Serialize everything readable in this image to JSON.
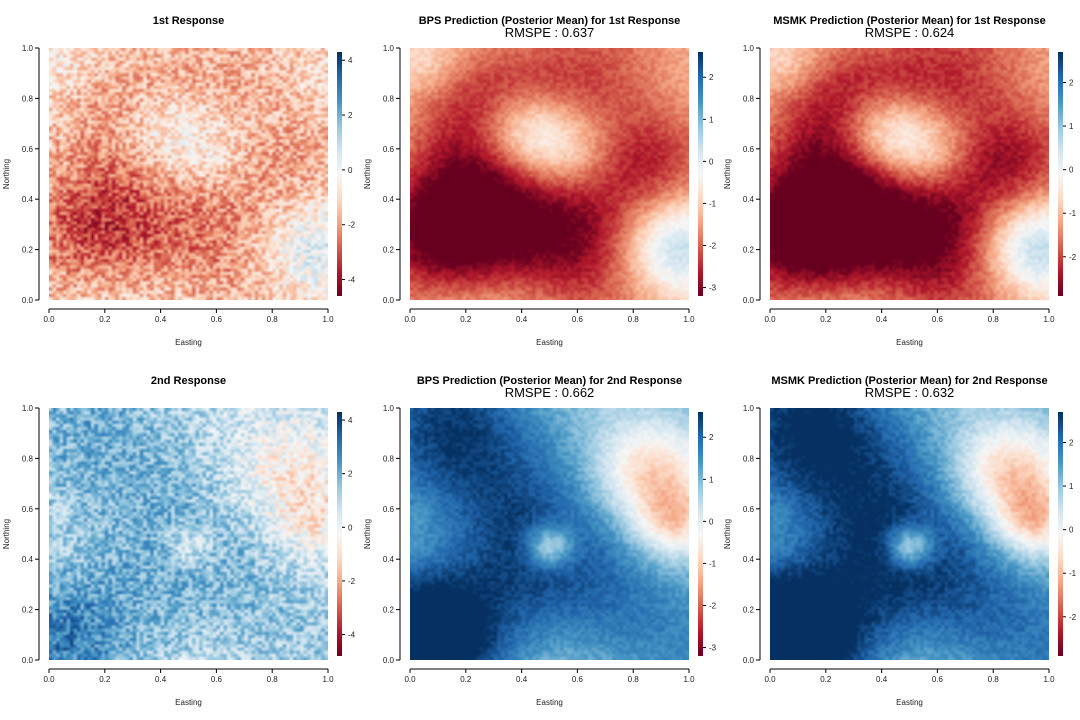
{
  "chart_data": [
    {
      "type": "heatmap",
      "title": "1st Response",
      "subtitle": "",
      "xlabel": "Easting",
      "ylabel": "Northing",
      "xlim": [
        0,
        1
      ],
      "ylim": [
        0,
        1
      ],
      "xticks": [
        "0.0",
        "0.2",
        "0.4",
        "0.6",
        "0.8",
        "1.0"
      ],
      "yticks": [
        "0.0",
        "0.2",
        "0.4",
        "0.6",
        "0.8",
        "1.0"
      ],
      "colorbar": {
        "range": [
          -4.6,
          4.3
        ],
        "ticks": [
          -4,
          -2,
          0,
          2,
          4
        ],
        "tick_labels": [
          "-4",
          "-2",
          "0",
          "2",
          "4"
        ]
      },
      "colormap": {
        "low": "#67001f",
        "mid": "#f7f7f7",
        "high": "#053061"
      },
      "field": {
        "bias": -0.9,
        "smooth": false
      }
    },
    {
      "type": "heatmap",
      "title": "BPS Prediction (Posterior Mean) for 1st Response",
      "subtitle": "RMSPE : 0.637",
      "xlabel": "Easting",
      "ylabel": "Northing",
      "xlim": [
        0,
        1
      ],
      "ylim": [
        0,
        1
      ],
      "xticks": [
        "0.0",
        "0.2",
        "0.4",
        "0.6",
        "0.8",
        "1.0"
      ],
      "yticks": [
        "0.0",
        "0.2",
        "0.4",
        "0.6",
        "0.8",
        "1.0"
      ],
      "colorbar": {
        "range": [
          -3.2,
          2.6
        ],
        "ticks": [
          -3,
          -2,
          -1,
          0,
          1,
          2
        ],
        "tick_labels": [
          "-3",
          "-2",
          "-1",
          "0",
          "1",
          "2"
        ]
      },
      "colormap": {
        "low": "#67001f",
        "mid": "#f7f7f7",
        "high": "#053061"
      },
      "field": {
        "bias": -0.9,
        "smooth": true
      }
    },
    {
      "type": "heatmap",
      "title": "MSMK Prediction (Posterior Mean) for 1st Response",
      "subtitle": "RMSPE : 0.624",
      "xlabel": "Easting",
      "ylabel": "Northing",
      "xlim": [
        0,
        1
      ],
      "ylim": [
        0,
        1
      ],
      "xticks": [
        "0.0",
        "0.2",
        "0.4",
        "0.6",
        "0.8",
        "1.0"
      ],
      "yticks": [
        "0.0",
        "0.2",
        "0.4",
        "0.6",
        "0.8",
        "1.0"
      ],
      "colorbar": {
        "range": [
          -2.9,
          2.7
        ],
        "ticks": [
          -2,
          -1,
          0,
          1,
          2
        ],
        "tick_labels": [
          "-2",
          "-1",
          "0",
          "1",
          "2"
        ]
      },
      "colormap": {
        "low": "#67001f",
        "mid": "#f7f7f7",
        "high": "#053061"
      },
      "field": {
        "bias": -0.9,
        "smooth": true
      }
    },
    {
      "type": "heatmap",
      "title": "2nd Response",
      "subtitle": "",
      "xlabel": "Easting",
      "ylabel": "Northing",
      "xlim": [
        0,
        1
      ],
      "ylim": [
        0,
        1
      ],
      "xticks": [
        "0.0",
        "0.2",
        "0.4",
        "0.6",
        "0.8",
        "1.0"
      ],
      "yticks": [
        "0.0",
        "0.2",
        "0.4",
        "0.6",
        "0.8",
        "1.0"
      ],
      "colorbar": {
        "range": [
          -4.8,
          4.3
        ],
        "ticks": [
          -4,
          -2,
          0,
          2,
          4
        ],
        "tick_labels": [
          "-4",
          "-2",
          "0",
          "2",
          "4"
        ]
      },
      "colormap": {
        "low": "#67001f",
        "mid": "#f7f7f7",
        "high": "#053061"
      },
      "field": {
        "bias": 1.3,
        "smooth": false
      }
    },
    {
      "type": "heatmap",
      "title": "BPS Prediction (Posterior Mean) for 2nd Response",
      "subtitle": "RMSPE : 0.662",
      "xlabel": "Easting",
      "ylabel": "Northing",
      "xlim": [
        0,
        1
      ],
      "ylim": [
        0,
        1
      ],
      "xticks": [
        "0.0",
        "0.2",
        "0.4",
        "0.6",
        "0.8",
        "1.0"
      ],
      "yticks": [
        "0.0",
        "0.2",
        "0.4",
        "0.6",
        "0.8",
        "1.0"
      ],
      "colorbar": {
        "range": [
          -3.2,
          2.6
        ],
        "ticks": [
          -3,
          -2,
          -1,
          0,
          1,
          2
        ],
        "tick_labels": [
          "-3",
          "-2",
          "-1",
          "0",
          "1",
          "2"
        ]
      },
      "colormap": {
        "low": "#67001f",
        "mid": "#f7f7f7",
        "high": "#053061"
      },
      "field": {
        "bias": 1.2,
        "smooth": true
      }
    },
    {
      "type": "heatmap",
      "title": "MSMK Prediction (Posterior Mean) for 2nd Response",
      "subtitle": "RMSPE : 0.632",
      "xlabel": "Easting",
      "ylabel": "Northing",
      "xlim": [
        0,
        1
      ],
      "ylim": [
        0,
        1
      ],
      "xticks": [
        "0.0",
        "0.2",
        "0.4",
        "0.6",
        "0.8",
        "1.0"
      ],
      "yticks": [
        "0.0",
        "0.2",
        "0.4",
        "0.6",
        "0.8",
        "1.0"
      ],
      "colorbar": {
        "range": [
          -2.9,
          2.7
        ],
        "ticks": [
          -2,
          -1,
          0,
          1,
          2
        ],
        "tick_labels": [
          "-2",
          "-1",
          "0",
          "1",
          "2"
        ]
      },
      "colormap": {
        "low": "#67001f",
        "mid": "#f7f7f7",
        "high": "#053061"
      },
      "field": {
        "bias": 1.2,
        "smooth": true
      }
    }
  ]
}
